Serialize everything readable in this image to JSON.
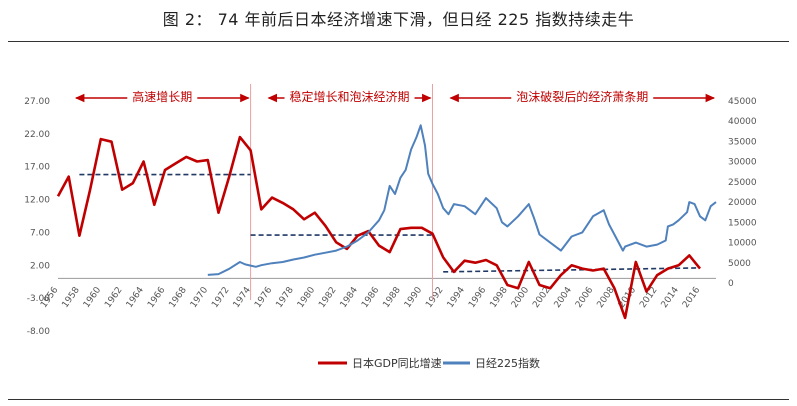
{
  "title": "图 2：  74 年前后日本经济增速下滑，但日经 225 指数持续走牛",
  "colors": {
    "gdp": "#c00000",
    "nikkei": "#4f81bd",
    "trend": "#1f3864",
    "phase": "#c00000",
    "divider": "#e8a0a0"
  },
  "phases": [
    {
      "label": "高速增长期",
      "x_start": 1956,
      "x_end": 1974
    },
    {
      "label": "稳定增长和泡沫经济期",
      "x_start": 1974,
      "x_end": 1991
    },
    {
      "label": "泡沫破裂后的经济萧条期",
      "x_start": 1991,
      "x_end": 2017.5
    }
  ],
  "chart_data": {
    "type": "line",
    "xlim": [
      1956,
      2017.5
    ],
    "x_ticks": [
      "1956",
      "1958",
      "1960",
      "1962",
      "1964",
      "1966",
      "1968",
      "1970",
      "1972",
      "1974",
      "1976",
      "1978",
      "1980",
      "1982",
      "1984",
      "1986",
      "1988",
      "1990",
      "1992",
      "1994",
      "1996",
      "1998",
      "2000",
      "2002",
      "2004",
      "2006",
      "2008",
      "2010",
      "2012",
      "2014",
      "2016"
    ],
    "y_left": {
      "range": [
        -8,
        27
      ],
      "ticks": [
        "27.00",
        "22.00",
        "17.00",
        "12.00",
        "7.00",
        "2.00",
        "-3.00",
        "-8.00"
      ]
    },
    "y_right": {
      "range": [
        0,
        45000
      ],
      "ticks": [
        "45000",
        "40000",
        "35000",
        "30000",
        "25000",
        "20000",
        "15000",
        "10000",
        "5000",
        "0"
      ]
    },
    "series": [
      {
        "name": "日本GDP同比增速",
        "axis": "left",
        "x": [
          1956,
          1957,
          1958,
          1959,
          1960,
          1961,
          1962,
          1963,
          1964,
          1965,
          1966,
          1967,
          1968,
          1969,
          1970,
          1971,
          1972,
          1973,
          1974,
          1975,
          1976,
          1977,
          1978,
          1979,
          1980,
          1981,
          1982,
          1983,
          1984,
          1985,
          1986,
          1987,
          1988,
          1989,
          1990,
          1991,
          1992,
          1993,
          1994,
          1995,
          1996,
          1997,
          1998,
          1999,
          2000,
          2001,
          2002,
          2003,
          2004,
          2005,
          2006,
          2007,
          2008,
          2009,
          2010,
          2011,
          2012,
          2013,
          2014,
          2015,
          2016
        ],
        "values": [
          12.5,
          15.5,
          6.5,
          13.5,
          21.2,
          20.8,
          13.5,
          14.5,
          17.8,
          11.2,
          16.5,
          17.5,
          18.5,
          17.8,
          18.0,
          10.0,
          15.5,
          21.5,
          19.5,
          10.5,
          12.3,
          11.5,
          10.5,
          9.0,
          10.0,
          8.0,
          5.5,
          4.5,
          6.5,
          7.2,
          5.0,
          4.0,
          7.5,
          7.7,
          7.7,
          6.8,
          3.2,
          1.0,
          2.7,
          2.4,
          2.8,
          2.0,
          -1.0,
          -1.5,
          2.5,
          -1.0,
          -1.5,
          0.5,
          2.0,
          1.5,
          1.2,
          1.5,
          -1.5,
          -6.0,
          2.5,
          -2.0,
          0.5,
          1.5,
          2.0,
          3.5,
          1.5
        ]
      },
      {
        "name": "日经225指数",
        "axis": "right",
        "x": [
          1970,
          1971,
          1972,
          1973,
          1973.5,
          1974,
          1974.5,
          1975,
          1976,
          1977,
          1978,
          1979,
          1980,
          1981,
          1982,
          1983,
          1984,
          1985,
          1986,
          1986.5,
          1987,
          1987.5,
          1988,
          1988.5,
          1989,
          1989.5,
          1989.9,
          1990.3,
          1990.6,
          1991,
          1991.5,
          1992,
          1992.5,
          1993,
          1994,
          1995,
          1996,
          1997,
          1997.5,
          1998,
          1999,
          2000,
          2000.5,
          2001,
          2002,
          2003,
          2004,
          2005,
          2006,
          2007,
          2007.5,
          2008,
          2008.8,
          2009,
          2010,
          2011,
          2012,
          2012.8,
          2013,
          2013.5,
          2014,
          2014.8,
          2015,
          2015.5,
          2016,
          2016.5,
          2017,
          2017.5
        ],
        "values": [
          2000,
          2200,
          3500,
          5200,
          4600,
          4300,
          4000,
          4400,
          4900,
          5200,
          5800,
          6300,
          7000,
          7500,
          8000,
          9000,
          10500,
          12500,
          15500,
          18000,
          24000,
          22000,
          26000,
          28000,
          33000,
          36000,
          39000,
          34000,
          27000,
          24500,
          22000,
          18500,
          17000,
          19500,
          19000,
          17000,
          21000,
          18500,
          15000,
          14000,
          16500,
          19500,
          16000,
          12000,
          10000,
          8000,
          11500,
          12500,
          16500,
          18000,
          14500,
          12000,
          8000,
          9000,
          10000,
          9000,
          9500,
          10500,
          14000,
          14500,
          15500,
          17500,
          20000,
          19500,
          16500,
          15500,
          19000,
          20000
        ]
      }
    ],
    "trend_lines": [
      {
        "axis": "left",
        "x": [
          1958,
          1974
        ],
        "y": [
          15.8,
          15.8
        ]
      },
      {
        "axis": "left",
        "x": [
          1974,
          1991
        ],
        "y": [
          6.6,
          6.6
        ]
      },
      {
        "axis": "left",
        "x": [
          1992,
          2016
        ],
        "y": [
          1.0,
          1.6
        ]
      }
    ],
    "legend_position": "bottom",
    "grid": false
  }
}
